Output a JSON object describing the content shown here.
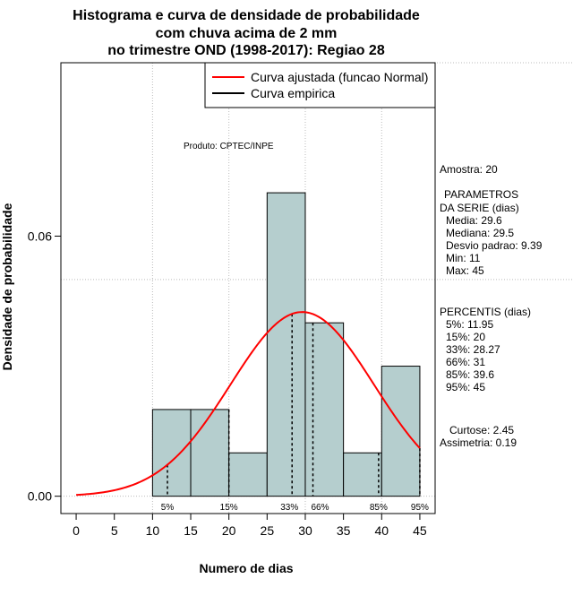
{
  "chart_data": {
    "type": "bar",
    "title_lines": [
      "Histograma e curva de densidade de probabilidade",
      "com chuva acima de 2 mm",
      "no trimestre OND (1998-2017): Regiao 28"
    ],
    "xlabel": "Numero de dias",
    "ylabel": "Densidade de probabilidade",
    "xlim": [
      -2,
      47
    ],
    "ylim": [
      -0.004,
      0.1
    ],
    "x_ticks": [
      0,
      5,
      10,
      15,
      20,
      25,
      30,
      35,
      40,
      45
    ],
    "y_ticks": [
      0.0,
      0.06
    ],
    "y_tick_labels": [
      "0.00",
      "0.06"
    ],
    "grid": true,
    "grid_x": [
      10,
      20,
      30,
      40
    ],
    "grid_y": [
      0.1,
      0.05
    ],
    "bin_edges": [
      10,
      15,
      20,
      25,
      30,
      35,
      40,
      45
    ],
    "densities": [
      0.02,
      0.02,
      0.01,
      0.07,
      0.04,
      0.01,
      0.03
    ],
    "bar_color": "#b5cece",
    "normal_curve": {
      "name": "Curva ajustada (funcao Normal)",
      "color": "#ff0000",
      "mean": 29.6,
      "sd": 9.39,
      "x_range": [
        0,
        45
      ]
    },
    "empirical_curve": {
      "name": "Curva empirica",
      "color": "#000000"
    },
    "percentiles": [
      {
        "label": "5%",
        "value": 11.95
      },
      {
        "label": "15%",
        "value": 20
      },
      {
        "label": "33%",
        "value": 28.27
      },
      {
        "label": "66%",
        "value": 31
      },
      {
        "label": "85%",
        "value": 39.6
      },
      {
        "label": "95%",
        "value": 45
      }
    ],
    "annotation": "Produto: CPTEC/INPE",
    "legend_position": "top-right",
    "side_text": {
      "amostra": "Amostra: 20",
      "param_header_1": "PARAMETROS",
      "param_header_2": "DA SERIE (dias)",
      "params": [
        "Media: 29.6",
        "Mediana: 29.5",
        "Desvio padrao: 9.39",
        "Min: 11",
        "Max: 45"
      ],
      "percentis_header": "PERCENTIS (dias)",
      "percentis": [
        "5%: 11.95",
        "15%: 20",
        "33%: 28.27",
        "66%: 31",
        "85%: 39.6",
        "95%: 45"
      ],
      "curtose": "Curtose: 2.45",
      "assimetria": "Assimetria: 0.19"
    }
  }
}
